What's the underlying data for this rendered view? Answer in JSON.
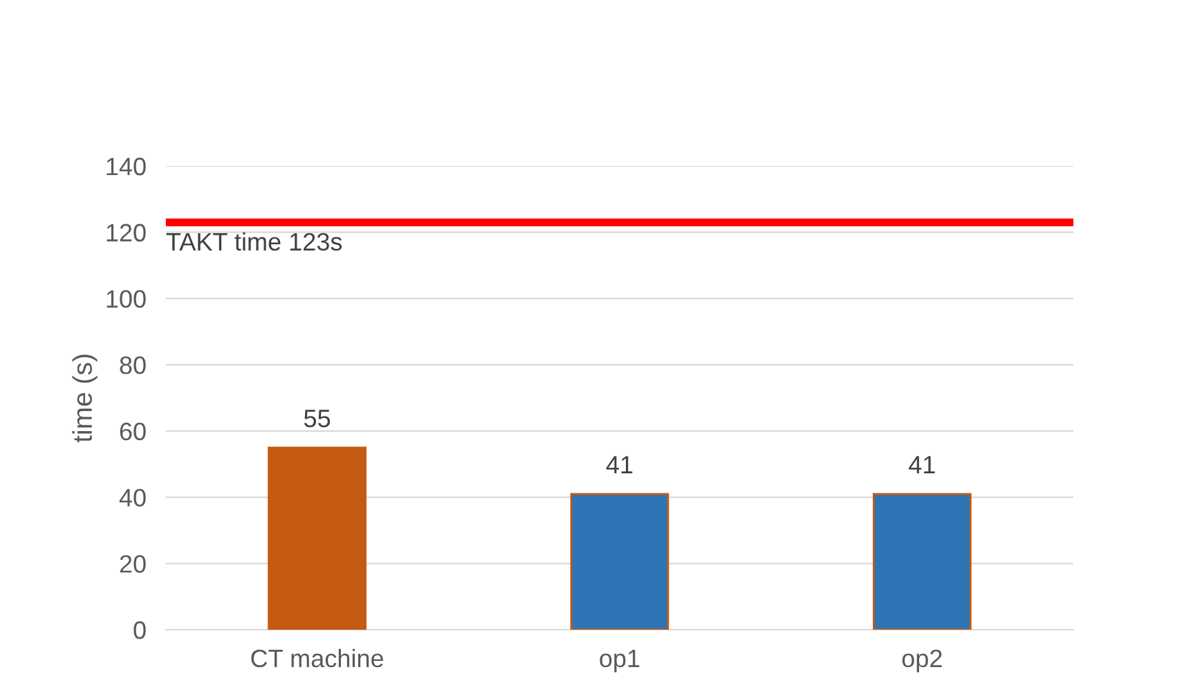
{
  "chart_data": {
    "type": "bar",
    "ylabel": "time (s)",
    "categories": [
      "CT machine",
      "op1",
      "op2"
    ],
    "values": [
      55,
      41,
      41
    ],
    "colors": [
      "#c55a11",
      "#2e75b6",
      "#2e75b6"
    ],
    "data_labels": true,
    "ylim": [
      0,
      140
    ],
    "yticks": [
      0,
      20,
      40,
      60,
      80,
      100,
      120,
      140
    ],
    "grid": "y",
    "ref_lines": [
      {
        "axis": "y",
        "value": 123,
        "label": "TAKT time 123s",
        "color": "#ff0000"
      }
    ]
  }
}
